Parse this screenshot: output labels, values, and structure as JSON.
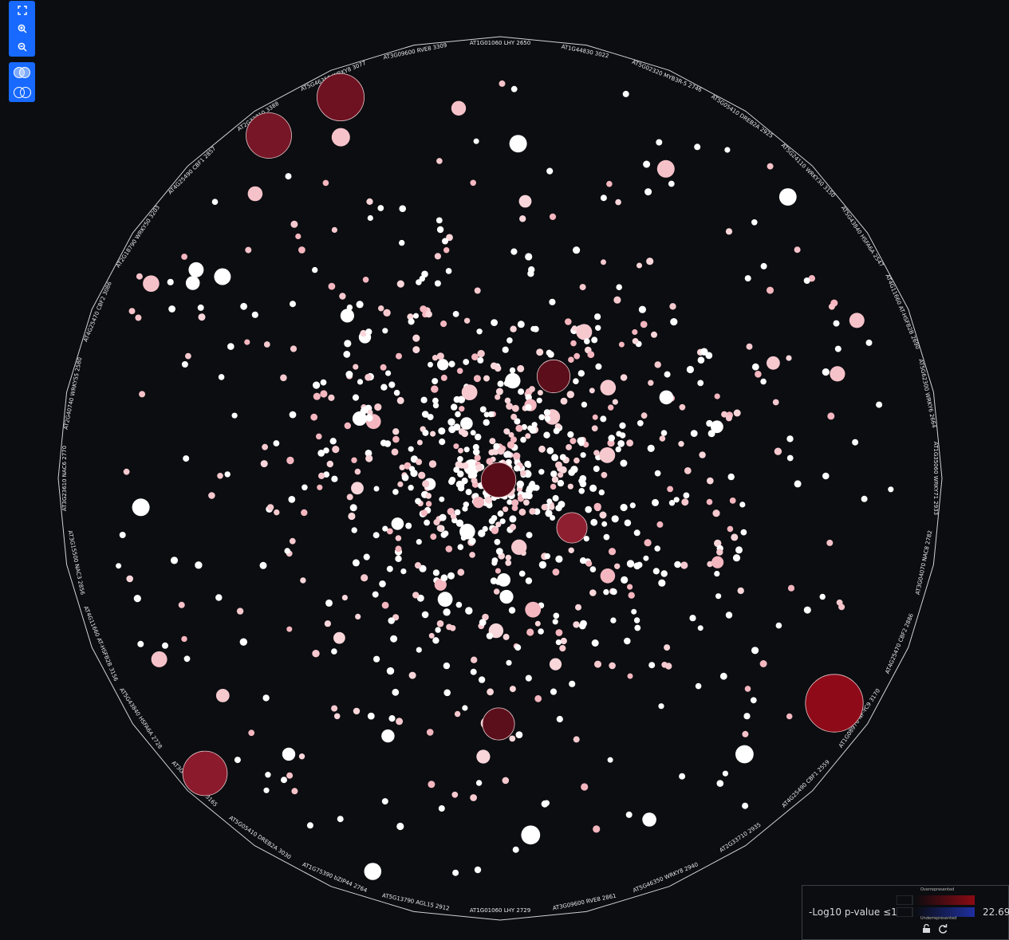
{
  "toolbar": {
    "fit_label": "fit",
    "zoom_in_label": "zoom in",
    "zoom_out_label": "zoom out",
    "overlap_on_label": "overlap",
    "overlap_off_label": "separate"
  },
  "ring_labels": [
    "AT1G01060 LHY 2650",
    "AT1G44830 3022",
    "AT5G02320 MYB3R-5 2746",
    "AT5G05410 DREB2A 2925",
    "AT5G24110 WRKY30 3150",
    "AT5G43840 HSFA6A 2547",
    "AT4G11660 AT-HSFB2B 2690",
    "AT5G62300 WRKY6 2664",
    "AT1G35060 WRKY71 2933",
    "AT3G04070 NAC8 2782",
    "AT4G25470 CBF2 2886",
    "AT1G08970 NF-YC9 3170",
    "AT4G25490 CBF1 2559",
    "AT2G33710 2935",
    "AT5G46350 WRKY8 2940",
    "AT3G09600 RVE8 2861",
    "AT1G01060 LHY 2729",
    "AT5G13790 AGL15 2912",
    "AT1G75390 bZIP44 2764",
    "AT5G05410 DREB2A 3030",
    "AT3G17609 HYH 3165",
    "AT5G43840 HSFA6A 2728",
    "AT4G11660 AT-HSFB2B 3156",
    "AT3G15500 NAC3 2856",
    "AT3G23610 NAC6 2770",
    "AT2G40740 WRKY55 2580",
    "AT4G25470 CBF2 3086",
    "AT2G18790 WRKY50 3203",
    "AT4G25490 CBF1 2857",
    "AT2G33710 3388",
    "AT5G46350 WRKY8 3077",
    "AT3G09600 RVE8 3309"
  ],
  "legend": {
    "title": "-Log10 p-value ≤1.3",
    "overrepresented": "Overrepresented",
    "underrepresented": "Underrepresented",
    "max_value": "22.69",
    "over_color": "#8b0a14",
    "under_color": "#1f2fa0"
  },
  "colors": {
    "background": "#0b0d10",
    "ring": "#cfd2d6",
    "node_white": "#ffffff",
    "node_pink_light": "#f6c9cf",
    "node_pink": "#f4b6bf",
    "node_dark_red": "#6e0f1e",
    "node_red": "#8f0a18",
    "toolbar": "#1769ff"
  },
  "large_nodes": [
    {
      "name": "largest-red-node",
      "value": 22.69,
      "color": "#8f0a18"
    },
    {
      "name": "dark-red-node-top-1",
      "value": 15.2,
      "color": "#6e1120"
    },
    {
      "name": "dark-red-node-top-2",
      "value": 14.1,
      "color": "#761626"
    },
    {
      "name": "dark-red-node-bottom-left",
      "value": 13.5,
      "color": "#8a1a2c"
    },
    {
      "name": "dark-red-node-center",
      "value": 8.2,
      "color": "#5a0d18"
    },
    {
      "name": "dark-red-node-center-right",
      "value": 7.4,
      "color": "#5c0e1a"
    },
    {
      "name": "dark-red-node-lower",
      "value": 7.0,
      "color": "#5b0f1b"
    },
    {
      "name": "red-node-mid-right",
      "value": 6.3,
      "color": "#8e1f30"
    }
  ]
}
